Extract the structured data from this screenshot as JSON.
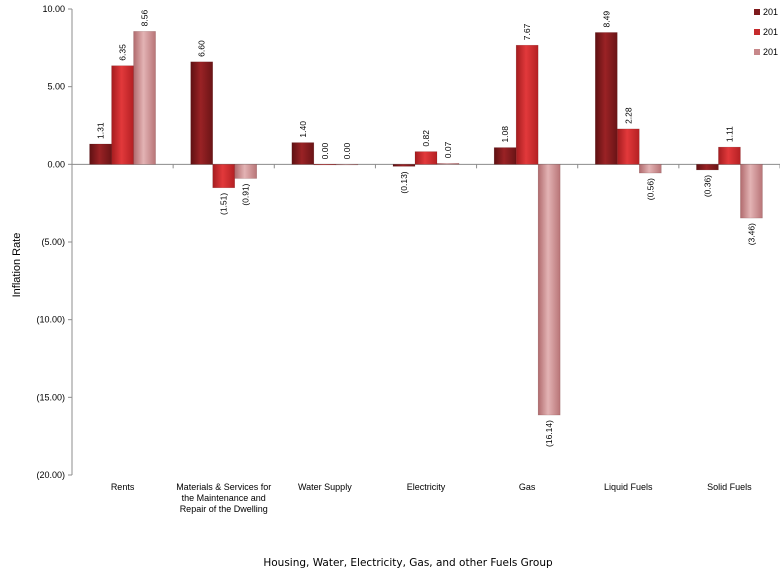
{
  "chart_data": {
    "type": "bar",
    "title": "",
    "xlabel": "Housing, Water, Electricity, Gas, and other Fuels Group",
    "ylabel": "Inflation Rate",
    "ylim": [
      -20,
      10
    ],
    "yticks": [
      10,
      5,
      0,
      -5,
      -10,
      -15,
      -20
    ],
    "ytick_labels": [
      "10.00",
      "5.00",
      "0.00",
      "(5.00)",
      "(10.00)",
      "(15.00)",
      "(20.00)"
    ],
    "grid": false,
    "legend_position": "top-right",
    "categories": [
      [
        "Rents"
      ],
      [
        "Materials & Services for",
        "the Maintenance and",
        "Repair of the Dwelling"
      ],
      [
        "Water Supply"
      ],
      [
        "Electricity"
      ],
      [
        "Gas"
      ],
      [
        "Liquid Fuels"
      ],
      [
        "Solid Fuels"
      ]
    ],
    "series": [
      {
        "name": "201",
        "color": "#7e1a1c",
        "values": [
          1.31,
          6.6,
          1.4,
          -0.13,
          1.08,
          8.49,
          -0.36
        ],
        "labels": [
          "1.31",
          "6.60",
          "1.40",
          "(0.13)",
          "1.08",
          "8.49",
          "(0.36)"
        ]
      },
      {
        "name": "201",
        "color": "#c52a2c",
        "values": [
          6.35,
          -1.51,
          0.0,
          0.82,
          7.67,
          2.28,
          1.11
        ],
        "labels": [
          "6.35",
          "(1.51)",
          "0.00",
          "0.82",
          "7.67",
          "2.28",
          "1.11"
        ]
      },
      {
        "name": "201",
        "color": "#c7888a",
        "values": [
          8.56,
          -0.91,
          0.0,
          0.07,
          -16.14,
          -0.56,
          -3.46
        ],
        "labels": [
          "8.56",
          "(0.91)",
          "0.00",
          "0.07",
          "(16.14)",
          "(0.56)",
          "(3.46)"
        ]
      }
    ]
  }
}
